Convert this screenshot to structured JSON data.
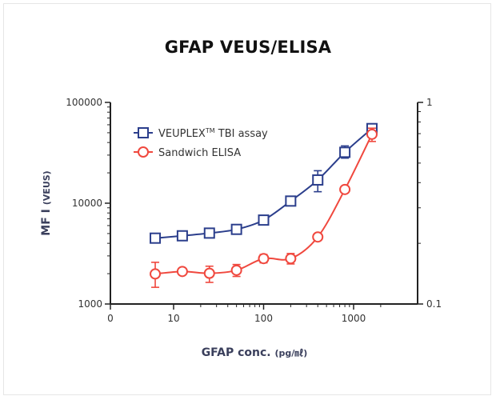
{
  "chart_data": {
    "type": "line",
    "title": "GFAP VEUS/ELISA",
    "xlabel": "GFAP conc.",
    "xlabel_unit": "(pg/㎖)",
    "ylabel": "MF I",
    "ylabel_unit": "(VEUS)",
    "x_scale": "log",
    "y_scale": "log",
    "y2_scale": "log",
    "ylim": [
      1000,
      100000
    ],
    "y2lim": [
      0.1,
      1
    ],
    "x_ticks": [
      "0",
      "10",
      "100",
      "1000"
    ],
    "y_ticks": [
      "1000",
      "10000",
      "100000"
    ],
    "y2_ticks": [
      "0.1",
      "1"
    ],
    "grid": false,
    "legend_position": "top-left",
    "series": [
      {
        "name": "VEUPLEX",
        "name_sup": "TM",
        "name_suffix": " TBI assay",
        "color": "#2b3e8c",
        "marker": "square",
        "axis": "left",
        "x": [
          6.25,
          12.5,
          25,
          50,
          100,
          200,
          400,
          800,
          1600
        ],
        "y": [
          4500,
          4750,
          5050,
          5500,
          6800,
          10500,
          17000,
          32000,
          55000
        ],
        "err_low": [
          4500,
          4750,
          5050,
          5500,
          6800,
          10500,
          13000,
          28000,
          55000
        ],
        "err_high": [
          4500,
          4750,
          5050,
          5500,
          6800,
          10500,
          21000,
          37000,
          55000
        ]
      },
      {
        "name": "Sandwich ELISA",
        "color": "#f0483e",
        "marker": "circle",
        "axis": "right",
        "x": [
          6.25,
          12.5,
          25,
          50,
          100,
          200,
          400,
          800,
          1600
        ],
        "y": [
          0.141,
          0.145,
          0.142,
          0.147,
          0.168,
          0.168,
          0.215,
          0.37,
          0.695
        ],
        "err_low": [
          0.121,
          0.145,
          0.128,
          0.137,
          0.16,
          0.158,
          0.215,
          0.37,
          0.64
        ],
        "err_high": [
          0.161,
          0.145,
          0.154,
          0.157,
          0.176,
          0.178,
          0.215,
          0.37,
          0.745
        ]
      }
    ]
  }
}
